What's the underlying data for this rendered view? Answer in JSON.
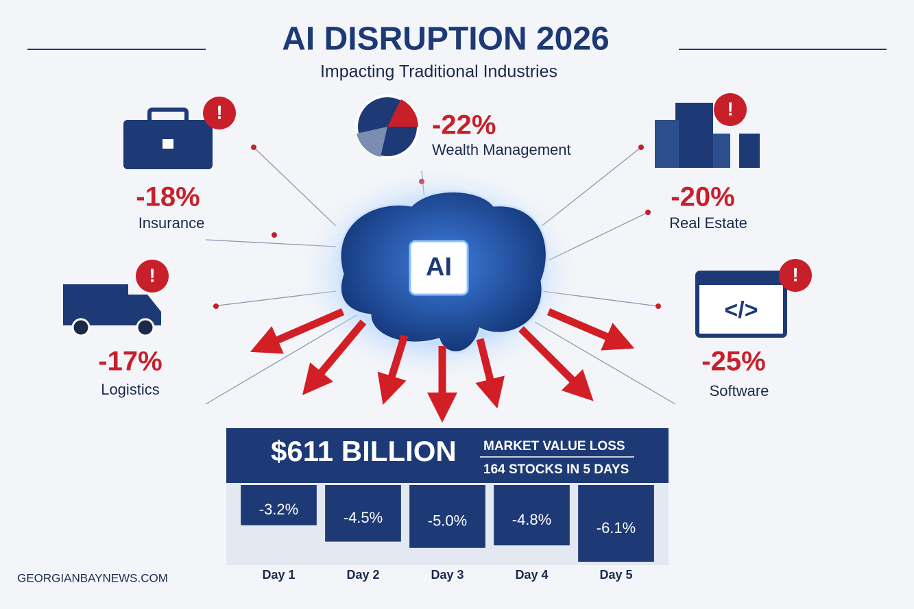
{
  "header": {
    "title": "AI DISRUPTION 2026",
    "subtitle": "Impacting Traditional Industries"
  },
  "industries": [
    {
      "change": "-18%",
      "name": "Insurance"
    },
    {
      "change": "-22%",
      "name": "Wealth Management"
    },
    {
      "change": "-20%",
      "name": "Real Estate"
    },
    {
      "change": "-17%",
      "name": "Logistics"
    },
    {
      "change": "-25%",
      "name": "Software"
    }
  ],
  "center_label": "AI",
  "summary": {
    "amount": "$611 BILLION",
    "line1": "MARKET VALUE LOSS",
    "line2": "164 STOCKS IN 5 DAYS"
  },
  "chart_data": {
    "type": "bar",
    "categories": [
      "Day 1",
      "Day 2",
      "Day 3",
      "Day 4",
      "Day 5"
    ],
    "values": [
      -3.2,
      -4.5,
      -5.0,
      -4.8,
      -6.1
    ],
    "value_labels": [
      "-3.2%",
      "-4.5%",
      "-5.0%",
      "-4.8%",
      "-6.1%"
    ],
    "color": "#1d3a76"
  },
  "footer": "GEORGIANBAYNEWS.COM"
}
